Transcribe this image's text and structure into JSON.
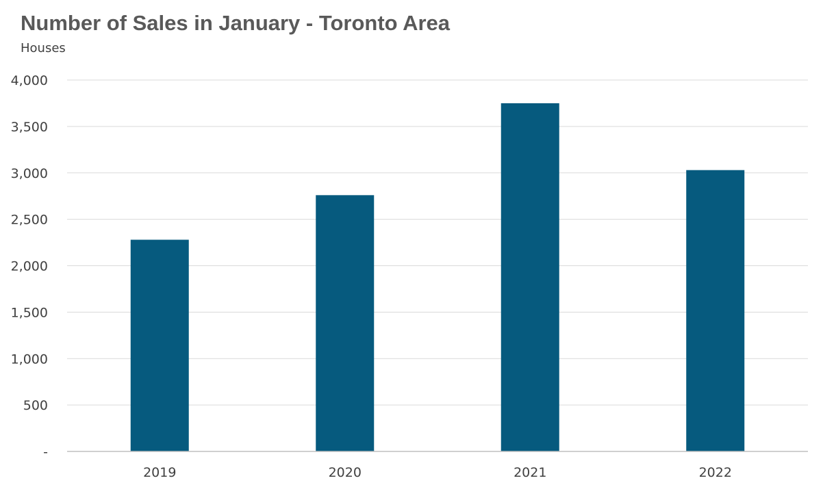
{
  "chart_data": {
    "type": "bar",
    "title": "Number of Sales in January - Toronto Area",
    "subtitle": "Houses",
    "categories": [
      "2019",
      "2020",
      "2021",
      "2022"
    ],
    "values": [
      2280,
      2760,
      3750,
      3030
    ],
    "ylim": [
      0,
      4000
    ],
    "yticks": [
      0,
      500,
      1000,
      1500,
      2000,
      2500,
      3000,
      3500,
      4000
    ],
    "ytick_labels": [
      "-",
      "500",
      "1,000",
      "1,500",
      "2,000",
      "2,500",
      "3,000",
      "3,500",
      "4,000"
    ],
    "bar_color": "#065a7e",
    "grid": true,
    "legend": "none"
  }
}
